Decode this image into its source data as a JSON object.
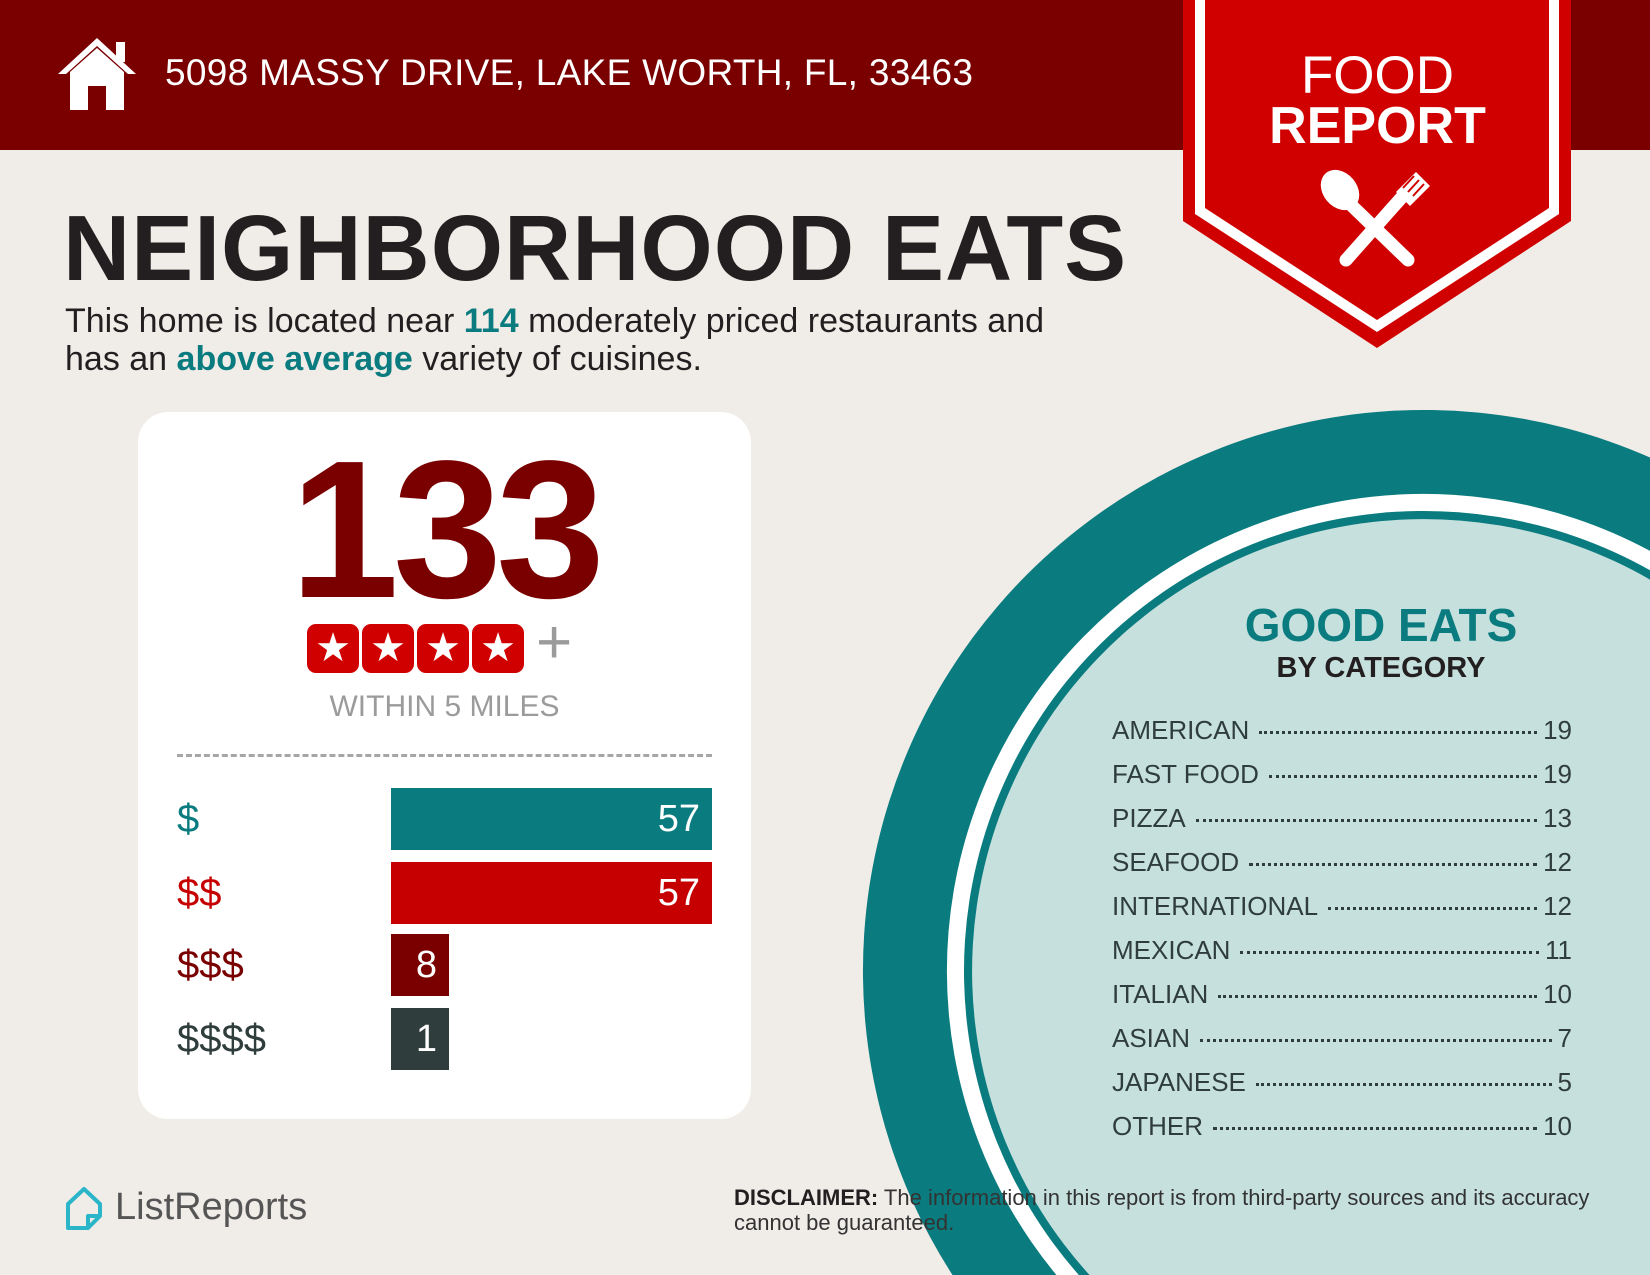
{
  "header": {
    "address": "5098 MASSY DRIVE, LAKE WORTH, FL, 33463",
    "icon": "home-icon"
  },
  "banner": {
    "line1": "FOOD",
    "line2": "REPORT",
    "icon": "spoon-fork-icon"
  },
  "title": "NEIGHBORHOOD EATS",
  "subtitle": {
    "p1": "This home is located near ",
    "count": "114",
    "p2": " moderately priced restaurants and",
    "p3": "has an ",
    "variety": "above average",
    "p4": " variety of cuisines."
  },
  "summary": {
    "total": "133",
    "rating_stars": 4,
    "star_glyph": "★",
    "plus": "+",
    "radius": "WITHIN 5 MILES"
  },
  "price_levels": [
    {
      "label": "$",
      "value": 57,
      "color": "#0a7b7e"
    },
    {
      "label": "$$",
      "value": 57,
      "color": "#c60000"
    },
    {
      "label": "$$$",
      "value": 8,
      "color": "#7a0000"
    },
    {
      "label": "$$$$",
      "value": 1,
      "color": "#2f3d3d"
    }
  ],
  "categories": {
    "title": "GOOD EATS",
    "subtitle": "BY CATEGORY",
    "items": [
      {
        "name": "AMERICAN",
        "count": "19"
      },
      {
        "name": "FAST FOOD",
        "count": "19"
      },
      {
        "name": "PIZZA",
        "count": "13"
      },
      {
        "name": "SEAFOOD",
        "count": "12"
      },
      {
        "name": "INTERNATIONAL",
        "count": "12"
      },
      {
        "name": "MEXICAN",
        "count": "11"
      },
      {
        "name": "ITALIAN",
        "count": "10"
      },
      {
        "name": "ASIAN",
        "count": "7"
      },
      {
        "name": "JAPANESE",
        "count": "5"
      },
      {
        "name": "OTHER",
        "count": "10"
      }
    ]
  },
  "footer": {
    "logo": "ListReports",
    "disclaimer_label": "DISCLAIMER:",
    "disclaimer_text": " The information in this report is from third-party sources and its accuracy cannot be guaranteed."
  },
  "colors": {
    "header": "#7a0000",
    "banner": "#d00000",
    "teal": "#0a7b7e",
    "light_teal": "#c6e0de",
    "background": "#f0ece8"
  }
}
